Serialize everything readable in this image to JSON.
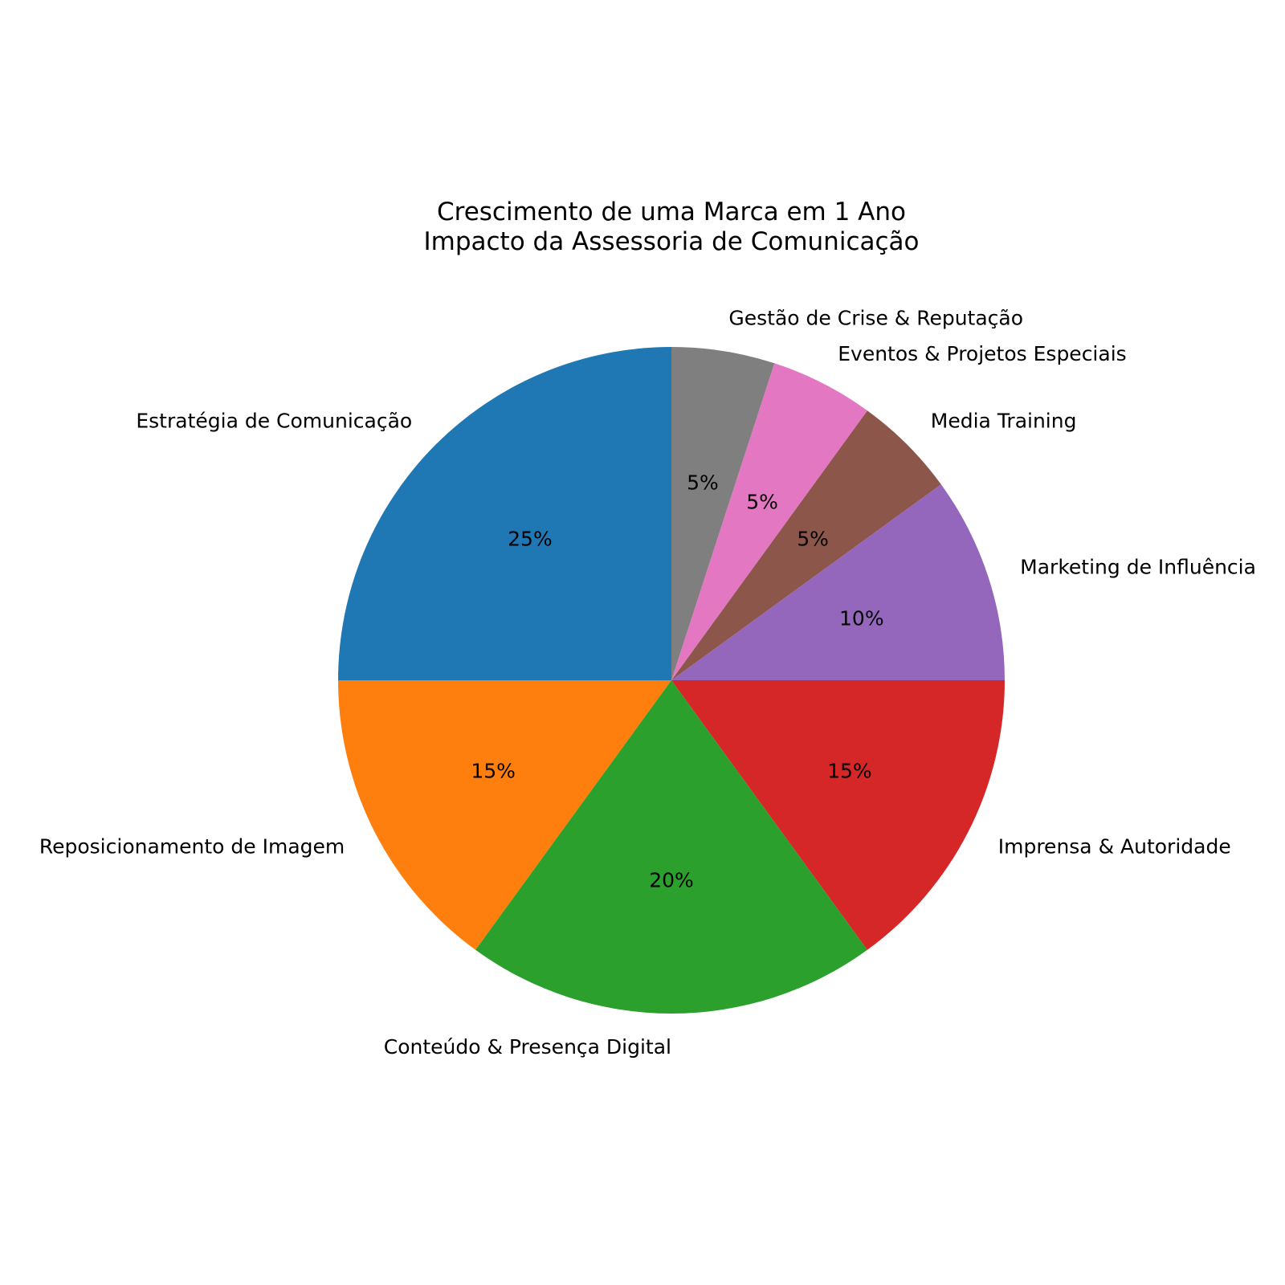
{
  "chart_data": {
    "type": "pie",
    "title": [
      "Crescimento de uma Marca em 1 Ano",
      "Impacto da Assessoria de Comunicação"
    ],
    "start_angle_deg": 90,
    "direction": "counterclockwise",
    "slices": [
      {
        "label": "Estratégia de Comunicação",
        "value": 25,
        "pct_label": "25%",
        "color": "#1f77b4"
      },
      {
        "label": "Reposicionamento de Imagem",
        "value": 15,
        "pct_label": "15%",
        "color": "#ff7f0e"
      },
      {
        "label": "Conteúdo & Presença Digital",
        "value": 20,
        "pct_label": "20%",
        "color": "#2ca02c"
      },
      {
        "label": "Imprensa & Autoridade",
        "value": 15,
        "pct_label": "15%",
        "color": "#d62728"
      },
      {
        "label": "Marketing de Influência",
        "value": 10,
        "pct_label": "10%",
        "color": "#9467bd"
      },
      {
        "label": "Media Training",
        "value": 5,
        "pct_label": "5%",
        "color": "#8c564b"
      },
      {
        "label": "Eventos & Projetos Especiais",
        "value": 5,
        "pct_label": "5%",
        "color": "#e377c2"
      },
      {
        "label": "Gestão de Crise & Reputação",
        "value": 5,
        "pct_label": "5%",
        "color": "#7f7f7f"
      }
    ]
  }
}
